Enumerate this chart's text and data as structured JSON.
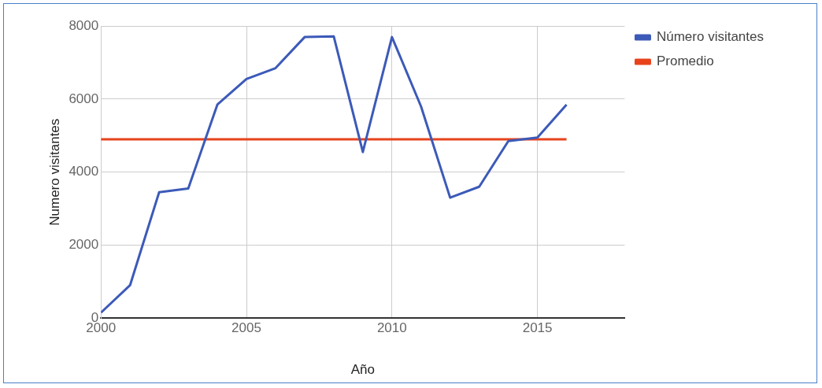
{
  "chart_data": {
    "type": "line",
    "xlabel": "Año",
    "ylabel": "Numero visitantes",
    "x": [
      2000,
      2001,
      2002,
      2003,
      2004,
      2005,
      2006,
      2007,
      2008,
      2009,
      2010,
      2011,
      2012,
      2013,
      2014,
      2015,
      2016
    ],
    "series": [
      {
        "name": "Número visitantes",
        "color": "#3c5ab8",
        "values": [
          150,
          900,
          3450,
          3550,
          5850,
          6550,
          6850,
          7700,
          7720,
          4550,
          7700,
          5800,
          3300,
          3600,
          4850,
          4950,
          5850
        ]
      },
      {
        "name": "Promedio",
        "color": "#e8431c",
        "values": [
          4900,
          4900,
          4900,
          4900,
          4900,
          4900,
          4900,
          4900,
          4900,
          4900,
          4900,
          4900,
          4900,
          4900,
          4900,
          4900,
          4900
        ]
      }
    ],
    "xlim": [
      2000,
      2018
    ],
    "xticks": [
      2000,
      2005,
      2010,
      2015
    ],
    "ylim": [
      0,
      8000
    ],
    "yticks": [
      0,
      2000,
      4000,
      6000,
      8000
    ],
    "grid": true,
    "legend": "top right",
    "marker": "none",
    "line_style": "solid"
  }
}
